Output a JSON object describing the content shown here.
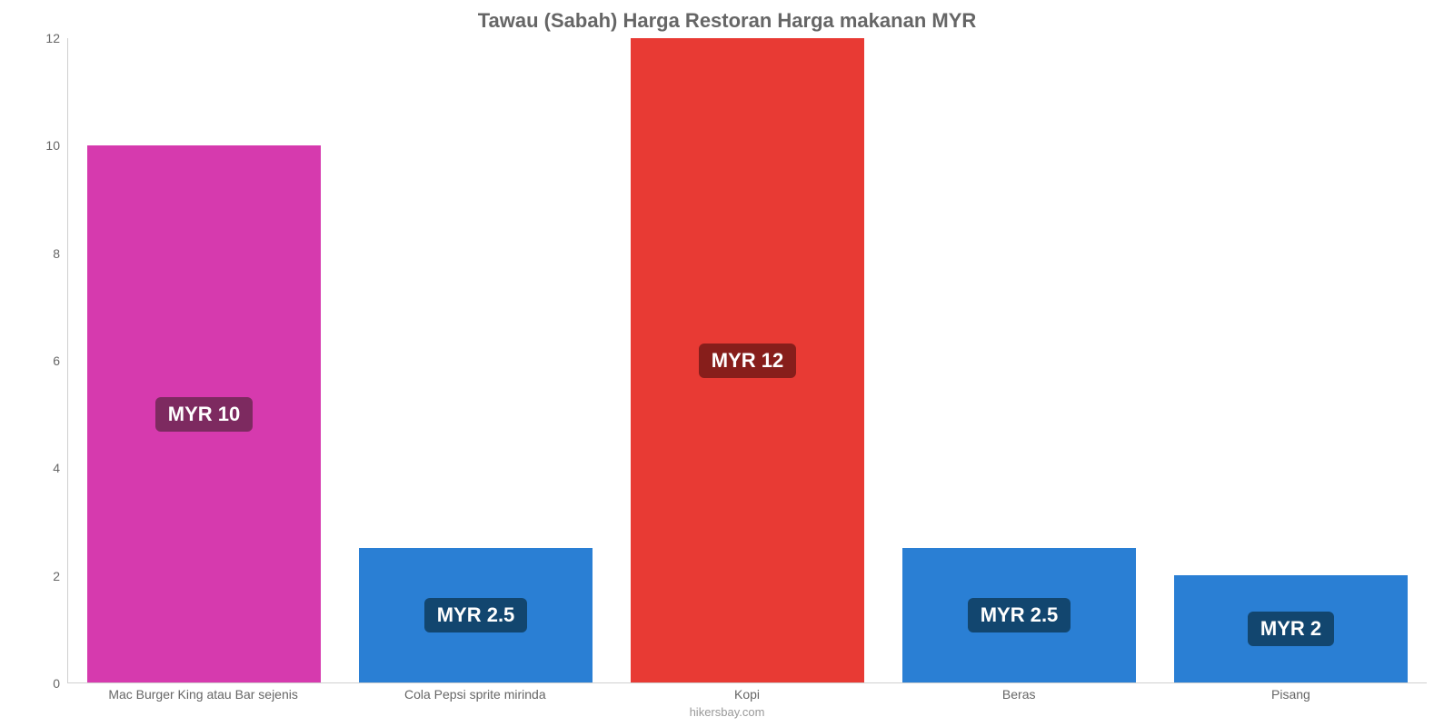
{
  "chart": {
    "type": "bar",
    "title": "Tawau (Sabah) Harga Restoran Harga makanan MYR",
    "title_color": "#666666",
    "title_fontsize": 22,
    "background_color": "#ffffff",
    "axis_color": "#d0d0d0",
    "tick_label_color": "#666666",
    "tick_label_fontsize": 14,
    "ylim": [
      0,
      12
    ],
    "ytick_step": 2,
    "yticks": [
      "0",
      "2",
      "4",
      "6",
      "8",
      "10",
      "12"
    ],
    "bar_width_pct": 86,
    "value_label_fontsize": 22,
    "value_label_text_color": "#ffffff",
    "value_label_radius": 6,
    "categories": [
      "Mac Burger King atau Bar sejenis",
      "Cola Pepsi sprite mirinda",
      "Kopi",
      "Beras",
      "Pisang"
    ],
    "values": [
      10,
      2.5,
      12,
      2.5,
      2
    ],
    "value_labels": [
      "MYR 10",
      "MYR 2.5",
      "MYR 12",
      "MYR 2.5",
      "MYR 2"
    ],
    "bar_colors": [
      "#d63aae",
      "#2a7fd4",
      "#e83a34",
      "#2a7fd4",
      "#2a7fd4"
    ],
    "label_bg_colors": [
      "#7d2a60",
      "#12466f",
      "#871e1b",
      "#12466f",
      "#12466f"
    ],
    "attribution": "hikersbay.com",
    "attribution_color": "#999999"
  }
}
